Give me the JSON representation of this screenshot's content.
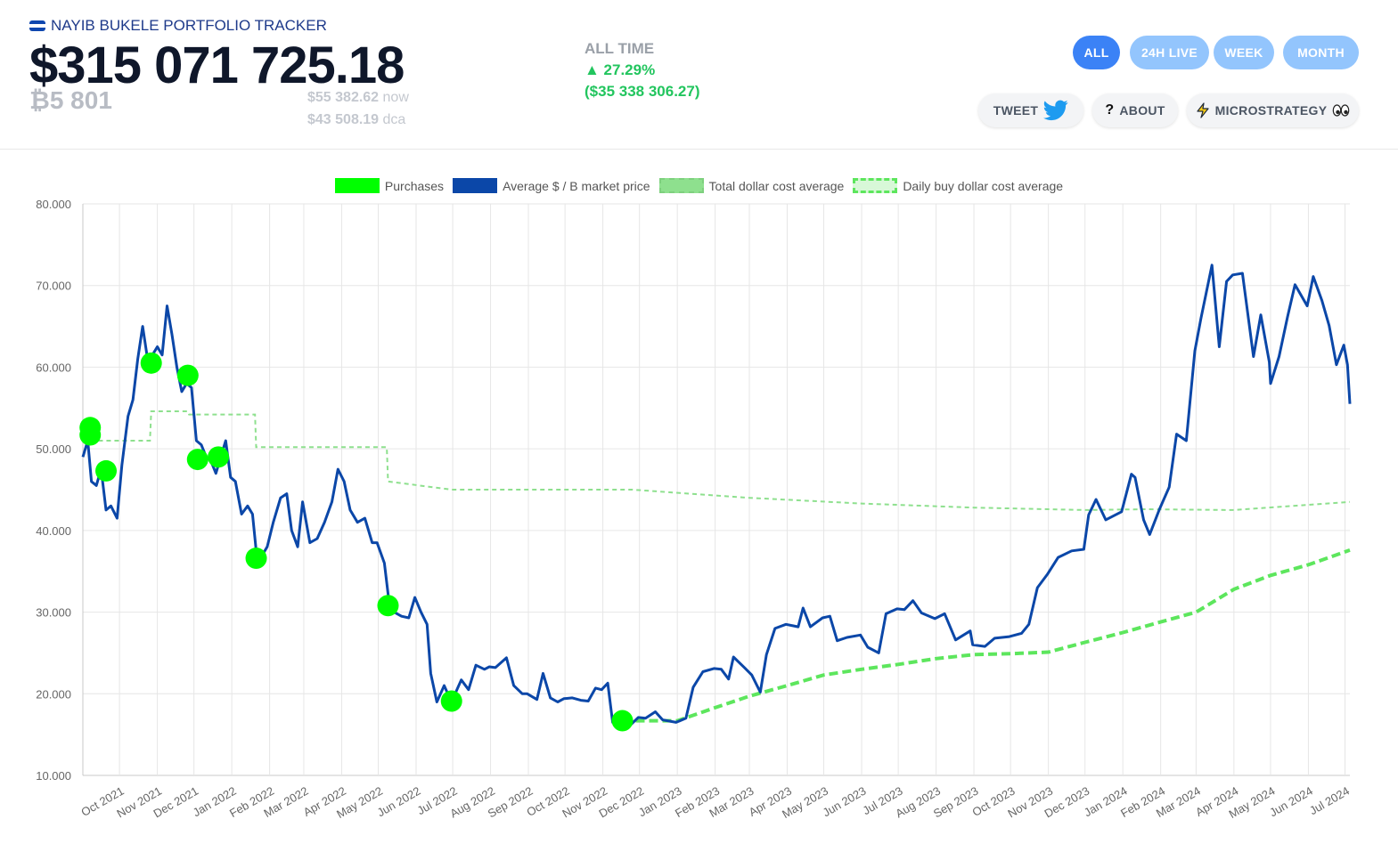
{
  "header": {
    "brand": "NAYIB BUKELE PORTFOLIO TRACKER",
    "portfolio_value": "$315 071 725.18",
    "btc_amount": "₿5 801",
    "now_price": "$55 382.62",
    "now_label": "now",
    "dca_price": "$43 508.19",
    "dca_label": "dca",
    "alltime_label": "ALL TIME",
    "alltime_pct": "▲ 27.29%",
    "alltime_abs": "($35 338 306.27)"
  },
  "ranges": [
    {
      "label": "ALL",
      "active": true
    },
    {
      "label": "24H LIVE",
      "active": false
    },
    {
      "label": "WEEK",
      "active": false
    },
    {
      "label": "MONTH",
      "active": false
    }
  ],
  "actions": {
    "tweet": "TWEET",
    "about": "ABOUT",
    "microstrategy": "MICROSTRATEGY"
  },
  "icons": {
    "flag": "el-salvador-flag-icon",
    "tweet": "twitter-bird-icon",
    "about": "question-mark-icon",
    "microstrategy": "lightning-icon",
    "eyes": "eyes-icon"
  },
  "colors": {
    "purchases": "#00ff00",
    "market": "#0b47a8",
    "total_dca": "#8ee08e",
    "daily_dca": "#5de65d",
    "active_pill": "#3b82f6",
    "inactive_pill": "#93c5fd",
    "gain": "#22c55e"
  },
  "chart_data": {
    "type": "line",
    "legend": [
      "Purchases",
      "Average $ / B market price",
      "Total dollar cost average",
      "Daily buy dollar cost average"
    ],
    "legend_position": "top",
    "grid": true,
    "ylim": [
      10000,
      80000
    ],
    "y_ticks": [
      "10.000",
      "20.000",
      "30.000",
      "40.000",
      "50.000",
      "60.000",
      "70.000",
      "80.000"
    ],
    "x_ticks": [
      "Oct 2021",
      "Nov 2021",
      "Dec 2021",
      "Jan 2022",
      "Feb 2022",
      "Mar 2022",
      "Apr 2022",
      "May 2022",
      "Jun 2022",
      "Jul 2022",
      "Aug 2022",
      "Sep 2022",
      "Oct 2022",
      "Nov 2022",
      "Dec 2022",
      "Jan 2023",
      "Feb 2023",
      "Mar 2023",
      "Apr 2023",
      "May 2023",
      "Jun 2023",
      "Jul 2023",
      "Aug 2023",
      "Sep 2023",
      "Oct 2023",
      "Nov 2023",
      "Dec 2023",
      "Jan 2024",
      "Feb 2024",
      "Mar 2024",
      "Apr 2024",
      "May 2024",
      "Jun 2024",
      "Jul 2024"
    ],
    "series": [
      {
        "name": "Average $ / B market price",
        "points": [
          [
            "2021-09-01",
            49000
          ],
          [
            "2021-09-05",
            51000
          ],
          [
            "2021-09-08",
            46000
          ],
          [
            "2021-09-12",
            45500
          ],
          [
            "2021-09-16",
            47500
          ],
          [
            "2021-09-20",
            42500
          ],
          [
            "2021-09-24",
            43000
          ],
          [
            "2021-09-29",
            41500
          ],
          [
            "2021-10-03",
            48000
          ],
          [
            "2021-10-08",
            54000
          ],
          [
            "2021-10-12",
            56000
          ],
          [
            "2021-10-16",
            61000
          ],
          [
            "2021-10-20",
            65000
          ],
          [
            "2021-10-24",
            61000
          ],
          [
            "2021-10-28",
            61500
          ],
          [
            "2021-11-01",
            62500
          ],
          [
            "2021-11-05",
            61500
          ],
          [
            "2021-11-09",
            67500
          ],
          [
            "2021-11-13",
            64000
          ],
          [
            "2021-11-17",
            60000
          ],
          [
            "2021-11-21",
            57000
          ],
          [
            "2021-11-25",
            58000
          ],
          [
            "2021-11-29",
            57500
          ],
          [
            "2021-12-03",
            51000
          ],
          [
            "2021-12-07",
            50500
          ],
          [
            "2021-12-11",
            49000
          ],
          [
            "2021-12-15",
            48500
          ],
          [
            "2021-12-19",
            47000
          ],
          [
            "2021-12-23",
            49000
          ],
          [
            "2021-12-27",
            51000
          ],
          [
            "2021-12-31",
            46500
          ],
          [
            "2022-01-04",
            46000
          ],
          [
            "2022-01-09",
            42000
          ],
          [
            "2022-01-14",
            43000
          ],
          [
            "2022-01-18",
            42000
          ],
          [
            "2022-01-22",
            36000
          ],
          [
            "2022-01-26",
            37000
          ],
          [
            "2022-01-30",
            38000
          ],
          [
            "2022-02-04",
            41000
          ],
          [
            "2022-02-10",
            44000
          ],
          [
            "2022-02-15",
            44500
          ],
          [
            "2022-02-19",
            40000
          ],
          [
            "2022-02-24",
            38000
          ],
          [
            "2022-02-28",
            43500
          ],
          [
            "2022-03-06",
            38500
          ],
          [
            "2022-03-12",
            39000
          ],
          [
            "2022-03-18",
            41000
          ],
          [
            "2022-03-24",
            43500
          ],
          [
            "2022-03-29",
            47500
          ],
          [
            "2022-04-03",
            46000
          ],
          [
            "2022-04-08",
            42500
          ],
          [
            "2022-04-14",
            41000
          ],
          [
            "2022-04-20",
            41500
          ],
          [
            "2022-04-26",
            38500
          ],
          [
            "2022-04-30",
            38500
          ],
          [
            "2022-05-06",
            36000
          ],
          [
            "2022-05-10",
            31000
          ],
          [
            "2022-05-14",
            30000
          ],
          [
            "2022-05-20",
            29500
          ],
          [
            "2022-05-26",
            29300
          ],
          [
            "2022-05-31",
            31800
          ],
          [
            "2022-06-05",
            30000
          ],
          [
            "2022-06-10",
            28500
          ],
          [
            "2022-06-13",
            22500
          ],
          [
            "2022-06-18",
            19000
          ],
          [
            "2022-06-24",
            21000
          ],
          [
            "2022-06-30",
            19000
          ],
          [
            "2022-07-08",
            21700
          ],
          [
            "2022-07-14",
            20500
          ],
          [
            "2022-07-20",
            23500
          ],
          [
            "2022-07-27",
            23000
          ],
          [
            "2022-07-31",
            23300
          ],
          [
            "2022-08-05",
            23200
          ],
          [
            "2022-08-14",
            24400
          ],
          [
            "2022-08-20",
            21000
          ],
          [
            "2022-08-27",
            20000
          ],
          [
            "2022-08-31",
            20000
          ],
          [
            "2022-09-08",
            19300
          ],
          [
            "2022-09-13",
            22500
          ],
          [
            "2022-09-19",
            19500
          ],
          [
            "2022-09-25",
            19000
          ],
          [
            "2022-09-30",
            19400
          ],
          [
            "2022-10-07",
            19500
          ],
          [
            "2022-10-14",
            19200
          ],
          [
            "2022-10-20",
            19100
          ],
          [
            "2022-10-26",
            20700
          ],
          [
            "2022-10-31",
            20500
          ],
          [
            "2022-11-05",
            21300
          ],
          [
            "2022-11-09",
            16500
          ],
          [
            "2022-11-15",
            16700
          ],
          [
            "2022-11-21",
            15800
          ],
          [
            "2022-11-30",
            17100
          ],
          [
            "2022-12-06",
            17000
          ],
          [
            "2022-12-14",
            17800
          ],
          [
            "2022-12-20",
            16800
          ],
          [
            "2022-12-31",
            16500
          ],
          [
            "2023-01-08",
            17000
          ],
          [
            "2023-01-14",
            20800
          ],
          [
            "2023-01-22",
            22700
          ],
          [
            "2023-01-31",
            23100
          ],
          [
            "2023-02-06",
            23000
          ],
          [
            "2023-02-12",
            21800
          ],
          [
            "2023-02-16",
            24500
          ],
          [
            "2023-02-25",
            23200
          ],
          [
            "2023-03-03",
            22300
          ],
          [
            "2023-03-10",
            20200
          ],
          [
            "2023-03-15",
            24800
          ],
          [
            "2023-03-22",
            28000
          ],
          [
            "2023-03-31",
            28500
          ],
          [
            "2023-04-10",
            28200
          ],
          [
            "2023-04-14",
            30500
          ],
          [
            "2023-04-20",
            28200
          ],
          [
            "2023-04-30",
            29300
          ],
          [
            "2023-05-06",
            29500
          ],
          [
            "2023-05-12",
            26500
          ],
          [
            "2023-05-20",
            26900
          ],
          [
            "2023-05-31",
            27200
          ],
          [
            "2023-06-06",
            25700
          ],
          [
            "2023-06-15",
            25000
          ],
          [
            "2023-06-21",
            29800
          ],
          [
            "2023-06-30",
            30400
          ],
          [
            "2023-07-06",
            30300
          ],
          [
            "2023-07-13",
            31400
          ],
          [
            "2023-07-20",
            29900
          ],
          [
            "2023-07-31",
            29200
          ],
          [
            "2023-08-08",
            29800
          ],
          [
            "2023-08-17",
            26600
          ],
          [
            "2023-08-29",
            27700
          ],
          [
            "2023-08-31",
            26000
          ],
          [
            "2023-09-10",
            25800
          ],
          [
            "2023-09-18",
            26800
          ],
          [
            "2023-09-30",
            27000
          ],
          [
            "2023-10-10",
            27400
          ],
          [
            "2023-10-16",
            28500
          ],
          [
            "2023-10-23",
            33000
          ],
          [
            "2023-10-31",
            34600
          ],
          [
            "2023-11-09",
            36700
          ],
          [
            "2023-11-20",
            37500
          ],
          [
            "2023-11-30",
            37700
          ],
          [
            "2023-12-04",
            41900
          ],
          [
            "2023-12-10",
            43800
          ],
          [
            "2023-12-18",
            41300
          ],
          [
            "2023-12-31",
            42300
          ],
          [
            "2024-01-08",
            46900
          ],
          [
            "2024-01-11",
            46500
          ],
          [
            "2024-01-18",
            41300
          ],
          [
            "2024-01-23",
            39500
          ],
          [
            "2024-01-31",
            42600
          ],
          [
            "2024-02-08",
            45300
          ],
          [
            "2024-02-14",
            51800
          ],
          [
            "2024-02-22",
            51000
          ],
          [
            "2024-02-29",
            62000
          ],
          [
            "2024-03-05",
            66000
          ],
          [
            "2024-03-14",
            72500
          ],
          [
            "2024-03-20",
            62500
          ],
          [
            "2024-03-26",
            70500
          ],
          [
            "2024-03-31",
            71300
          ],
          [
            "2024-04-08",
            71500
          ],
          [
            "2024-04-17",
            61300
          ],
          [
            "2024-04-23",
            66400
          ],
          [
            "2024-04-30",
            60600
          ],
          [
            "2024-05-01",
            58000
          ],
          [
            "2024-05-08",
            61300
          ],
          [
            "2024-05-15",
            66200
          ],
          [
            "2024-05-21",
            70100
          ],
          [
            "2024-05-31",
            67500
          ],
          [
            "2024-06-05",
            71100
          ],
          [
            "2024-06-12",
            68200
          ],
          [
            "2024-06-18",
            65100
          ],
          [
            "2024-06-24",
            60300
          ],
          [
            "2024-06-30",
            62700
          ],
          [
            "2024-07-03",
            60300
          ],
          [
            "2024-07-05",
            55500
          ]
        ]
      },
      {
        "name": "Total dollar cost average",
        "points": [
          [
            "2021-09-01",
            51300
          ],
          [
            "2021-09-06",
            51000
          ],
          [
            "2021-10-26",
            51000
          ],
          [
            "2021-10-27",
            54600
          ],
          [
            "2021-11-26",
            54600
          ],
          [
            "2021-11-27",
            54200
          ],
          [
            "2022-01-20",
            54200
          ],
          [
            "2022-01-21",
            50200
          ],
          [
            "2022-05-08",
            50200
          ],
          [
            "2022-05-09",
            46000
          ],
          [
            "2022-06-30",
            45000
          ],
          [
            "2022-11-25",
            45000
          ],
          [
            "2023-03-01",
            44000
          ],
          [
            "2023-06-01",
            43300
          ],
          [
            "2023-09-01",
            42800
          ],
          [
            "2023-12-01",
            42500
          ],
          [
            "2024-01-20",
            42600
          ],
          [
            "2024-04-01",
            42500
          ],
          [
            "2024-07-05",
            43500
          ]
        ]
      },
      {
        "name": "Daily buy dollar cost average",
        "points": [
          [
            "2022-11-17",
            16700
          ],
          [
            "2023-01-01",
            16700
          ],
          [
            "2023-02-01",
            18300
          ],
          [
            "2023-03-01",
            19700
          ],
          [
            "2023-04-01",
            21000
          ],
          [
            "2023-05-01",
            22300
          ],
          [
            "2023-06-01",
            23000
          ],
          [
            "2023-07-01",
            23600
          ],
          [
            "2023-08-01",
            24300
          ],
          [
            "2023-09-01",
            24800
          ],
          [
            "2023-10-01",
            24900
          ],
          [
            "2023-11-01",
            25100
          ],
          [
            "2023-12-01",
            26300
          ],
          [
            "2024-01-01",
            27500
          ],
          [
            "2024-02-01",
            28800
          ],
          [
            "2024-03-01",
            30000
          ],
          [
            "2024-04-01",
            32800
          ],
          [
            "2024-05-01",
            34500
          ],
          [
            "2024-06-01",
            35800
          ],
          [
            "2024-07-05",
            37600
          ]
        ]
      },
      {
        "name": "Purchases",
        "points": [
          [
            "2021-09-07",
            52600
          ],
          [
            "2021-09-07",
            51700
          ],
          [
            "2021-09-20",
            47300
          ],
          [
            "2021-10-27",
            60500
          ],
          [
            "2021-11-26",
            59000
          ],
          [
            "2021-12-04",
            48700
          ],
          [
            "2021-12-21",
            49000
          ],
          [
            "2022-01-21",
            36600
          ],
          [
            "2022-05-09",
            30800
          ],
          [
            "2022-06-30",
            19100
          ],
          [
            "2022-11-17",
            16700
          ]
        ]
      }
    ]
  }
}
